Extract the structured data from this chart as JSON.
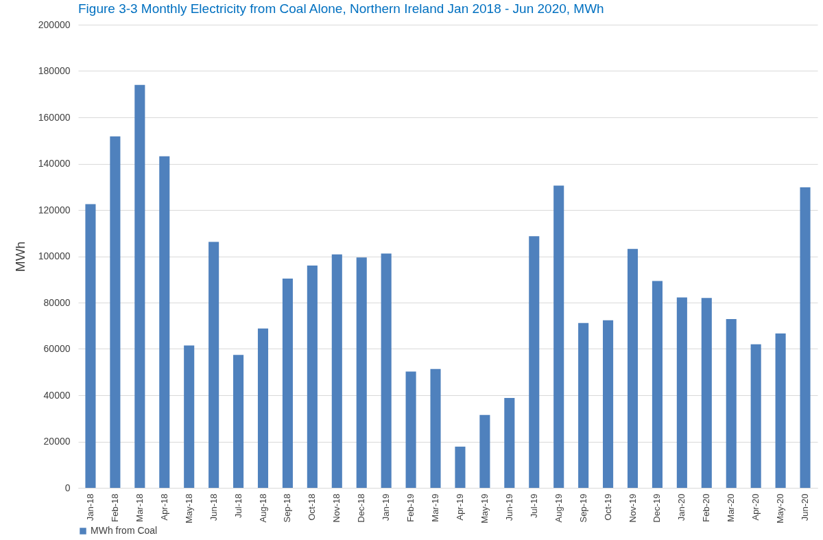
{
  "chart_data": {
    "type": "bar",
    "title": "Figure 3-3 Monthly Electricity from Coal Alone, Northern Ireland Jan 2018 - Jun 2020, MWh",
    "ylabel": "MWh",
    "categories": [
      "Jan-18",
      "Feb-18",
      "Mar-18",
      "Apr-18",
      "May-18",
      "Jun-18",
      "Jul-18",
      "Aug-18",
      "Sep-18",
      "Oct-18",
      "Nov-18",
      "Dec-18",
      "Jan-19",
      "Feb-19",
      "Mar-19",
      "Apr-19",
      "May-19",
      "Jun-19",
      "Jul-19",
      "Aug-19",
      "Sep-19",
      "Oct-19",
      "Nov-19",
      "Dec-19",
      "Jan-20",
      "Feb-20",
      "Mar-20",
      "Apr-20",
      "May-20",
      "Jun-20"
    ],
    "series": [
      {
        "name": "MWh from Coal",
        "color": "#4f81bd",
        "values": [
          122500,
          151800,
          174000,
          143200,
          61500,
          106200,
          57400,
          68800,
          90400,
          96000,
          100800,
          99500,
          101200,
          50200,
          51300,
          17800,
          31500,
          38800,
          108700,
          130500,
          71200,
          72400,
          103200,
          89300,
          82200,
          82000,
          72900,
          62000,
          66700,
          129800
        ]
      }
    ],
    "ylim": [
      0,
      200000
    ],
    "yticks": [
      0,
      20000,
      40000,
      60000,
      80000,
      100000,
      120000,
      140000,
      160000,
      180000,
      200000
    ],
    "grid": "y",
    "legend": "bottom"
  }
}
